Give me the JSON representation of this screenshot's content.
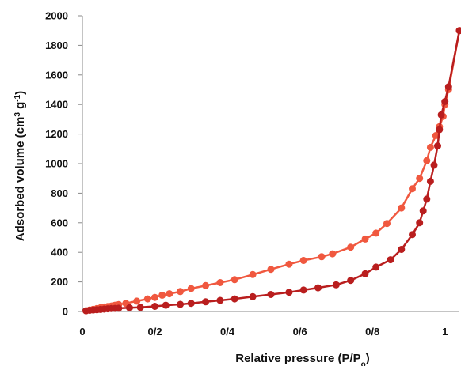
{
  "chart_data": {
    "type": "line",
    "xlabel": "Relative pressure (P/P",
    "xlabel_subscript": "o",
    "xlabel_close": ")",
    "ylabel": "Adsorbed volume (cm",
    "ylabel_sup1": "3",
    "ylabel_mid": " g",
    "ylabel_sup2": "-1",
    "ylabel_close": ")",
    "xlim": [
      0,
      1.04
    ],
    "ylim": [
      0,
      2000
    ],
    "x_ticks": [
      0,
      0.2,
      0.4,
      0.6,
      0.8,
      1.0
    ],
    "x_tick_labels": [
      "0",
      "0/2",
      "0/4",
      "0/6",
      "0/8",
      "1"
    ],
    "y_ticks": [
      0,
      200,
      400,
      600,
      800,
      1000,
      1200,
      1400,
      1600,
      1800,
      2000
    ],
    "y_tick_labels": [
      "0",
      "200",
      "400",
      "600",
      "800",
      "1000",
      "1200",
      "1400",
      "1600",
      "1800",
      "2000"
    ],
    "grid": false,
    "series": [
      {
        "color": "#F0583F",
        "x": [
          0.01,
          0.02,
          0.03,
          0.04,
          0.05,
          0.06,
          0.07,
          0.08,
          0.09,
          0.1,
          0.12,
          0.15,
          0.18,
          0.2,
          0.22,
          0.24,
          0.27,
          0.3,
          0.34,
          0.38,
          0.42,
          0.47,
          0.52,
          0.57,
          0.61,
          0.66,
          0.69,
          0.74,
          0.78,
          0.81,
          0.84,
          0.88,
          0.91,
          0.93,
          0.95,
          0.96,
          0.975,
          0.985,
          0.995,
          1.0,
          1.01,
          1.04
        ],
        "values": [
          5,
          10,
          15,
          20,
          25,
          30,
          33,
          37,
          42,
          47,
          55,
          70,
          85,
          95,
          110,
          120,
          135,
          155,
          175,
          195,
          215,
          250,
          285,
          320,
          345,
          370,
          390,
          435,
          490,
          530,
          595,
          700,
          830,
          900,
          1020,
          1110,
          1190,
          1250,
          1320,
          1400,
          1500,
          1900
        ]
      },
      {
        "color": "#B91E1E",
        "x": [
          0.01,
          0.02,
          0.03,
          0.04,
          0.05,
          0.06,
          0.07,
          0.08,
          0.09,
          0.1,
          0.13,
          0.16,
          0.2,
          0.23,
          0.27,
          0.3,
          0.34,
          0.38,
          0.42,
          0.47,
          0.52,
          0.57,
          0.61,
          0.65,
          0.7,
          0.74,
          0.78,
          0.81,
          0.85,
          0.88,
          0.91,
          0.93,
          0.94,
          0.95,
          0.96,
          0.97,
          0.98,
          0.985,
          0.99,
          1.0,
          1.01,
          1.04
        ],
        "values": [
          5,
          8,
          10,
          12,
          14,
          16,
          18,
          20,
          21,
          22,
          25,
          28,
          35,
          42,
          48,
          55,
          65,
          75,
          85,
          100,
          115,
          130,
          145,
          160,
          180,
          210,
          255,
          300,
          350,
          420,
          520,
          600,
          680,
          760,
          880,
          990,
          1120,
          1230,
          1330,
          1420,
          1520,
          1900
        ]
      }
    ]
  }
}
